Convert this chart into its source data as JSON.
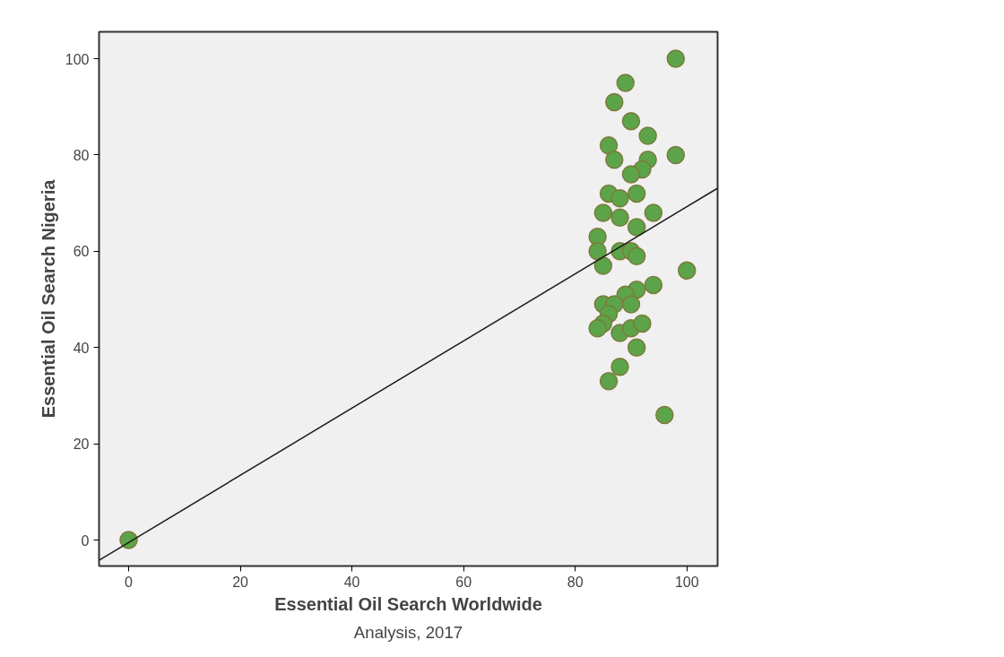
{
  "chart_data": {
    "type": "scatter",
    "xlabel": "Essential Oil Search Worldwide",
    "ylabel": "Essential Oil Search Nigeria",
    "annotations": [
      "Analysis, 2017"
    ],
    "xlim": [
      -5.3,
      105.5
    ],
    "ylim": [
      -5.4,
      105.6
    ],
    "xticks": [
      0,
      20,
      40,
      60,
      80,
      100
    ],
    "yticks": [
      0,
      20,
      40,
      60,
      80,
      100
    ],
    "grid": false,
    "series": [
      {
        "marker": "circle",
        "color": "#5ca449",
        "x": [
          98,
          89,
          87,
          90,
          93,
          86,
          87,
          98,
          93,
          92,
          90,
          86,
          88,
          91,
          85,
          88,
          94,
          91,
          84,
          84,
          88,
          90,
          91,
          85,
          100,
          94,
          91,
          89,
          85,
          87,
          90,
          86,
          85,
          84,
          88,
          90,
          92,
          91,
          88,
          86,
          96,
          0
        ],
        "values": [
          100,
          95,
          91,
          87,
          84,
          82,
          79,
          80,
          79,
          77,
          76,
          72,
          71,
          72,
          68,
          67,
          68,
          65,
          63,
          60,
          60,
          60,
          59,
          57,
          56,
          53,
          52,
          51,
          49,
          49,
          49,
          47,
          45,
          44,
          43,
          44,
          45,
          40,
          36,
          33,
          26,
          0
        ]
      },
      {
        "type": "line",
        "marker": "none",
        "color": "#1a1a1a",
        "line_style": "solid",
        "x": [
          -5.3,
          105.5
        ],
        "values": [
          -4.2,
          73.1
        ]
      }
    ]
  }
}
